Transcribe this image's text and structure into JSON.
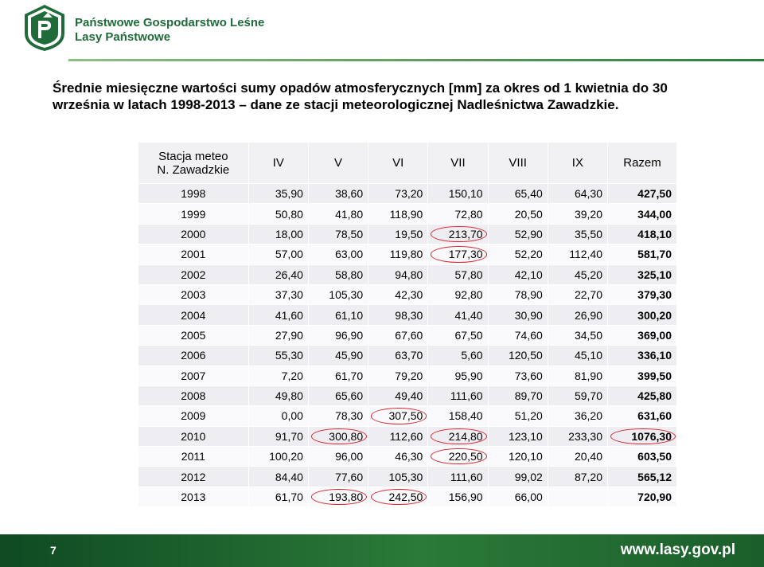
{
  "header": {
    "org_line1": "Państwowe Gospodarstwo Leśne",
    "org_line2": "Lasy Państwowe",
    "logo_text": "LASY PAŃSTWOWE"
  },
  "title": "Średnie miesięczne wartości sumy opadów atmosferycznych [mm] za okres od 1 kwietnia do 30 września w latach 1998-2013 – dane ze stacji meteorologicznej Nadleśnictwa Zawadzkie.",
  "table": {
    "station_label_line1": "Stacja meteo",
    "station_label_line2": "N. Zawadzkie",
    "columns": [
      "IV",
      "V",
      "VI",
      "VII",
      "VIII",
      "IX",
      "Razem"
    ],
    "rows": [
      {
        "year": "1998",
        "values": [
          "35,90",
          "38,60",
          "73,20",
          "150,10",
          "65,40",
          "64,30",
          "427,50"
        ]
      },
      {
        "year": "1999",
        "values": [
          "50,80",
          "41,80",
          "118,90",
          "72,80",
          "20,50",
          "39,20",
          "344,00"
        ]
      },
      {
        "year": "2000",
        "values": [
          "18,00",
          "78,50",
          "19,50",
          "213,70",
          "52,90",
          "35,50",
          "418,10"
        ]
      },
      {
        "year": "2001",
        "values": [
          "57,00",
          "63,00",
          "119,80",
          "177,30",
          "52,20",
          "112,40",
          "581,70"
        ]
      },
      {
        "year": "2002",
        "values": [
          "26,40",
          "58,80",
          "94,80",
          "57,80",
          "42,10",
          "45,20",
          "325,10"
        ]
      },
      {
        "year": "2003",
        "values": [
          "37,30",
          "105,30",
          "42,30",
          "92,80",
          "78,90",
          "22,70",
          "379,30"
        ]
      },
      {
        "year": "2004",
        "values": [
          "41,60",
          "61,10",
          "98,30",
          "41,40",
          "30,90",
          "26,90",
          "300,20"
        ]
      },
      {
        "year": "2005",
        "values": [
          "27,90",
          "96,90",
          "67,60",
          "67,50",
          "74,60",
          "34,50",
          "369,00"
        ]
      },
      {
        "year": "2006",
        "values": [
          "55,30",
          "45,90",
          "63,70",
          "5,60",
          "120,50",
          "45,10",
          "336,10"
        ]
      },
      {
        "year": "2007",
        "values": [
          "7,20",
          "61,70",
          "79,20",
          "95,90",
          "73,60",
          "81,90",
          "399,50"
        ]
      },
      {
        "year": "2008",
        "values": [
          "49,80",
          "65,60",
          "49,40",
          "111,60",
          "89,70",
          "59,70",
          "425,80"
        ]
      },
      {
        "year": "2009",
        "values": [
          "0,00",
          "78,30",
          "307,50",
          "158,40",
          "51,20",
          "36,20",
          "631,60"
        ]
      },
      {
        "year": "2010",
        "values": [
          "91,70",
          "300,80",
          "112,60",
          "214,80",
          "123,10",
          "233,30",
          "1076,30"
        ]
      },
      {
        "year": "2011",
        "values": [
          "100,20",
          "96,00",
          "46,30",
          "220,50",
          "120,10",
          "20,40",
          "603,50"
        ]
      },
      {
        "year": "2012",
        "values": [
          "84,40",
          "77,60",
          "105,30",
          "111,60",
          "99,02",
          "87,20",
          "565,12"
        ]
      },
      {
        "year": "2013",
        "values": [
          "61,70",
          "193,80",
          "242,50",
          "156,90",
          "66,00",
          "",
          "720,90"
        ]
      }
    ],
    "highlighted": [
      {
        "row": 2,
        "col": 3
      },
      {
        "row": 3,
        "col": 3
      },
      {
        "row": 11,
        "col": 2
      },
      {
        "row": 12,
        "col": 1
      },
      {
        "row": 12,
        "col": 3
      },
      {
        "row": 12,
        "col": 6
      },
      {
        "row": 13,
        "col": 3
      },
      {
        "row": 15,
        "col": 1
      },
      {
        "row": 15,
        "col": 2
      }
    ],
    "highlight_color": "#d9242b"
  },
  "footer": {
    "page_number": "7",
    "url": "www.lasy.gov.pl"
  },
  "colors": {
    "brand_green": "#1f6b3a",
    "footer_green": "#2b7a39"
  }
}
